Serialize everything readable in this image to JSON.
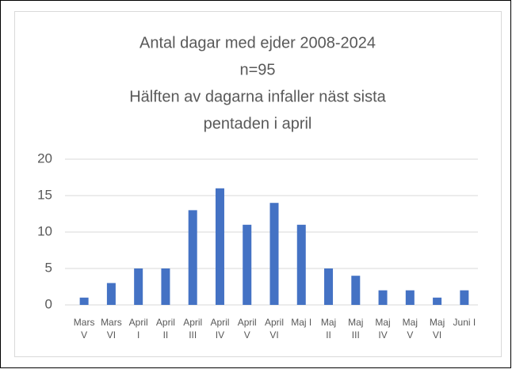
{
  "chart_data": {
    "type": "bar",
    "title": [
      "Antal dagar med ejder 2008-2024",
      "n=95",
      "Hälften av dagarna infaller näst sista",
      "pentaden i april"
    ],
    "categories": [
      "Mars\nV",
      "Mars\nVI",
      "April\nI",
      "April\nII",
      "April\nIII",
      "April\nIV",
      "April\nV",
      "April\nVI",
      "Maj I",
      "Maj\nII",
      "Maj\nIII",
      "Maj\nIV",
      "Maj\nV",
      "Maj\nVI",
      "Juni I"
    ],
    "values": [
      1,
      3,
      5,
      5,
      13,
      16,
      11,
      14,
      11,
      5,
      4,
      2,
      2,
      1,
      2
    ],
    "color": "#4472c4",
    "ylim": [
      0,
      20
    ],
    "yticks": [
      0,
      5,
      10,
      15,
      20
    ],
    "grid": true
  }
}
